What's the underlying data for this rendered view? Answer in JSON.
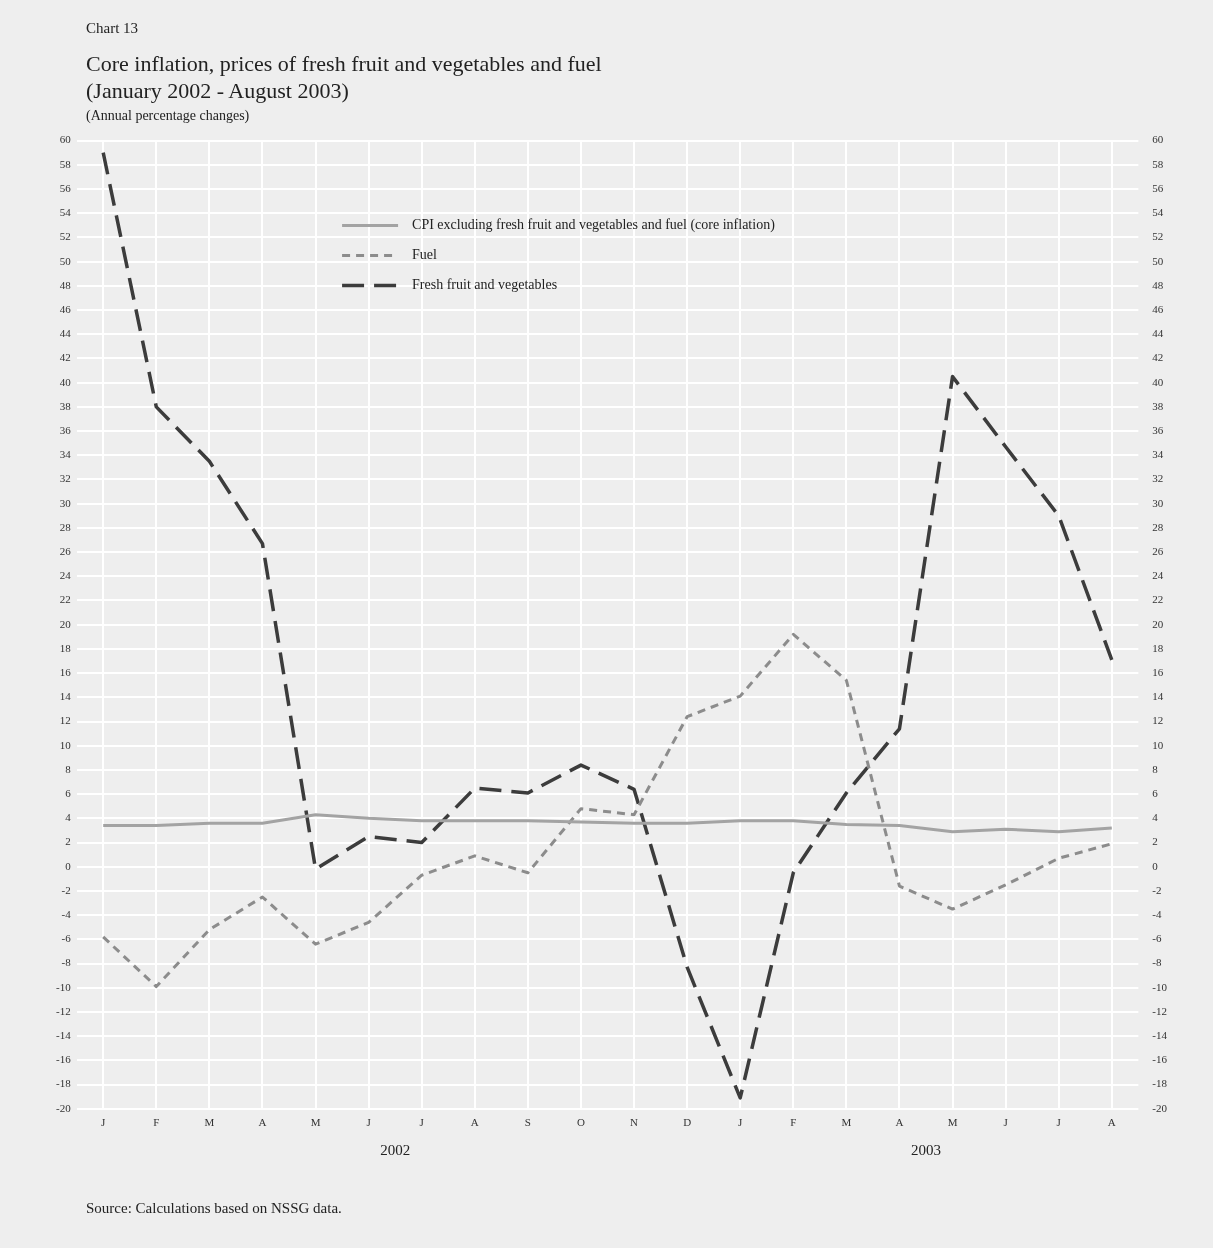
{
  "chart_data": {
    "type": "line",
    "title": "Core inflation, prices of fresh fruit and vegetables and fuel\n(January 2002 - August 2003)",
    "subtitle": "(Annual percentage changes)",
    "annotations": [
      "Chart 13",
      "2002",
      "2003",
      "Source: Calculations based on NSSG data."
    ],
    "categories": [
      "J",
      "F",
      "M",
      "A",
      "M",
      "J",
      "J",
      "A",
      "S",
      "O",
      "N",
      "D",
      "J",
      "F",
      "M",
      "A",
      "M",
      "J",
      "J",
      "A"
    ],
    "series": [
      {
        "name": "CPI excluding fresh fruit and vegetables and fuel (core inflation)",
        "color": "#a3a3a3",
        "line_style": "solid",
        "values": [
          3.4,
          3.4,
          3.6,
          3.6,
          4.3,
          4.0,
          3.8,
          3.8,
          3.8,
          3.7,
          3.6,
          3.6,
          3.8,
          3.8,
          3.5,
          3.4,
          2.9,
          3.1,
          2.9,
          3.2
        ]
      },
      {
        "name": "Fuel",
        "color": "#8c8c8c",
        "line_style": "dotted",
        "values": [
          -5.8,
          -9.9,
          -5.2,
          -2.5,
          -6.4,
          -4.6,
          -0.7,
          0.9,
          -0.5,
          4.8,
          4.3,
          12.4,
          14.1,
          19.2,
          15.4,
          -1.6,
          -3.5,
          -1.5,
          0.7,
          1.9
        ]
      },
      {
        "name": "Fresh fruit and vegetables",
        "color": "#3c3c3c",
        "line_style": "dashed",
        "values": [
          59.0,
          38.0,
          33.5,
          26.7,
          -0.2,
          2.5,
          2.0,
          6.5,
          6.1,
          8.4,
          6.4,
          -8.3,
          -19.1,
          -0.5,
          6.1,
          11.4,
          40.5,
          34.7,
          29.0,
          17.1
        ]
      }
    ],
    "ylim": [
      -20,
      60
    ],
    "yticks": [
      -20,
      -18,
      -16,
      -14,
      -12,
      -10,
      -8,
      -6,
      -4,
      -2,
      0,
      2,
      4,
      6,
      8,
      10,
      12,
      14,
      16,
      18,
      20,
      22,
      24,
      26,
      28,
      30,
      32,
      34,
      36,
      38,
      40,
      42,
      44,
      46,
      48,
      50,
      52,
      54,
      56,
      58,
      60
    ],
    "y2lim": [
      -20,
      60
    ],
    "y2ticks": [
      -20,
      -18,
      -16,
      -14,
      -12,
      -10,
      -8,
      -6,
      -4,
      -2,
      0,
      2,
      4,
      6,
      8,
      10,
      12,
      14,
      16,
      18,
      20,
      22,
      24,
      26,
      28,
      30,
      32,
      34,
      36,
      38,
      40,
      42,
      44,
      46,
      48,
      50,
      52,
      54,
      56,
      58,
      60
    ],
    "grid": true,
    "legend": "top",
    "marker": "none"
  }
}
